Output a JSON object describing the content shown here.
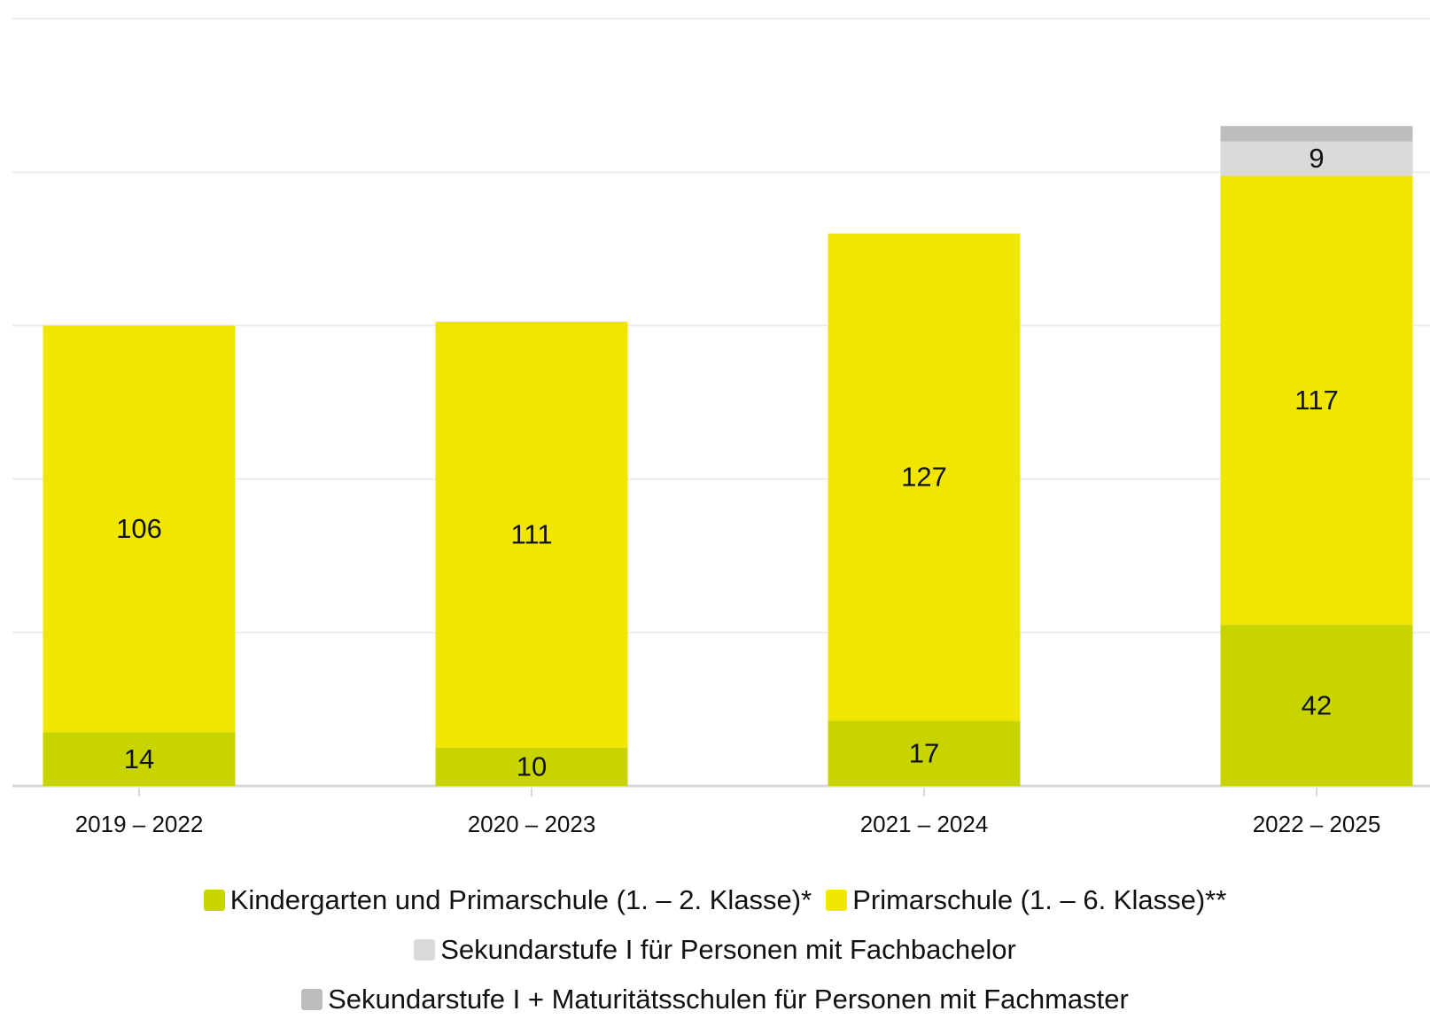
{
  "chart_data": {
    "type": "stacked_bar",
    "categories": [
      "2019 – 2022",
      "2020 – 2023",
      "2021 – 2024",
      "2022 – 2025"
    ],
    "series": [
      {
        "name": "Kindergarten und Primarschule (1. – 2. Klasse)*",
        "color": "#c8d400",
        "values": [
          14,
          10,
          17,
          42
        ],
        "show_labels": true
      },
      {
        "name": "Primarschule (1. – 6. Klasse)**",
        "color": "#f0e600",
        "values": [
          106,
          111,
          127,
          117
        ],
        "show_labels": true
      },
      {
        "name": "Sekundarstufe I für Personen mit Fachbachelor",
        "color": "#dadada",
        "values": [
          null,
          null,
          null,
          9
        ],
        "show_labels": true
      },
      {
        "name": "Sekundarstufe I + Maturitätsschulen für Personen mit Fachmaster",
        "color": "#bdbdbd",
        "values": [
          null,
          null,
          null,
          4
        ],
        "show_labels": false
      }
    ],
    "ylim": [
      0,
      200
    ],
    "yticks": [
      0,
      40,
      80,
      120,
      160,
      200
    ],
    "grid": true,
    "show_ytick_labels": false,
    "legend": "bottom"
  }
}
